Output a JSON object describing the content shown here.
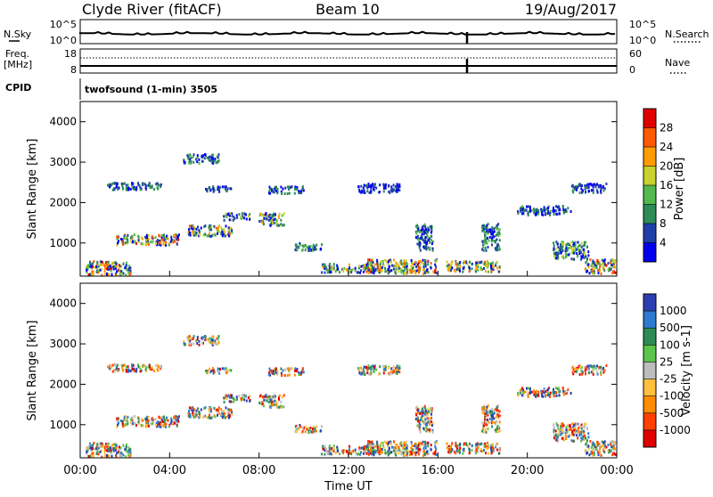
{
  "header": {
    "station": "Clyde River (fitACF)",
    "beam": "Beam 10",
    "date": "19/Aug/2017"
  },
  "top_panel": {
    "nsky_label": "N.Sky",
    "nsearch_label": "N.Search",
    "left_ticks": [
      "10^5",
      "10^0"
    ],
    "right_ticks": [
      "10^5",
      "10^0"
    ]
  },
  "freq_panel": {
    "freq_label": "Freq.",
    "freq_unit": "[MHz]",
    "nave_label": "Nave",
    "left_ticks": [
      "18",
      "8"
    ],
    "right_ticks": [
      "60",
      "0"
    ]
  },
  "cpid": {
    "label": "CPID",
    "value": "twofsound (1-min) 3505"
  },
  "chart_data": [
    {
      "type": "heatmap",
      "name": "power",
      "ylabel": "Slant Range [km]",
      "ylim": [
        180,
        4500
      ],
      "y_ticks": [
        "1000",
        "2000",
        "3000",
        "4000"
      ],
      "colorbar_label": "Power [dB]",
      "colorbar_ticks": [
        "4",
        "8",
        "12",
        "16",
        "20",
        "24",
        "28"
      ],
      "colors": [
        "#0000ee",
        "#1f3fa8",
        "#2e8b57",
        "#53b84d",
        "#c8d230",
        "#ff9d00",
        "#ff5a00",
        "#e00000"
      ]
    },
    {
      "type": "heatmap",
      "name": "velocity",
      "ylabel": "Slant Range [km]",
      "ylim": [
        180,
        4500
      ],
      "y_ticks": [
        "1000",
        "2000",
        "3000",
        "4000"
      ],
      "colorbar_label": "Velocity [m s-1]",
      "colorbar_ticks": [
        "1000",
        "500",
        "100",
        "25",
        "-25",
        "-100",
        "-500",
        "-1000"
      ],
      "colors": [
        "#2b3fb0",
        "#2e7ad0",
        "#2e8b57",
        "#5cc44a",
        "#bdbdbd",
        "#ffc040",
        "#ff8c00",
        "#ff4000",
        "#e00000"
      ]
    }
  ],
  "x_axis": {
    "ticks": [
      "00:00",
      "04:00",
      "08:00",
      "12:00",
      "16:00",
      "20:00",
      "00:00"
    ],
    "label": "Time UT"
  }
}
